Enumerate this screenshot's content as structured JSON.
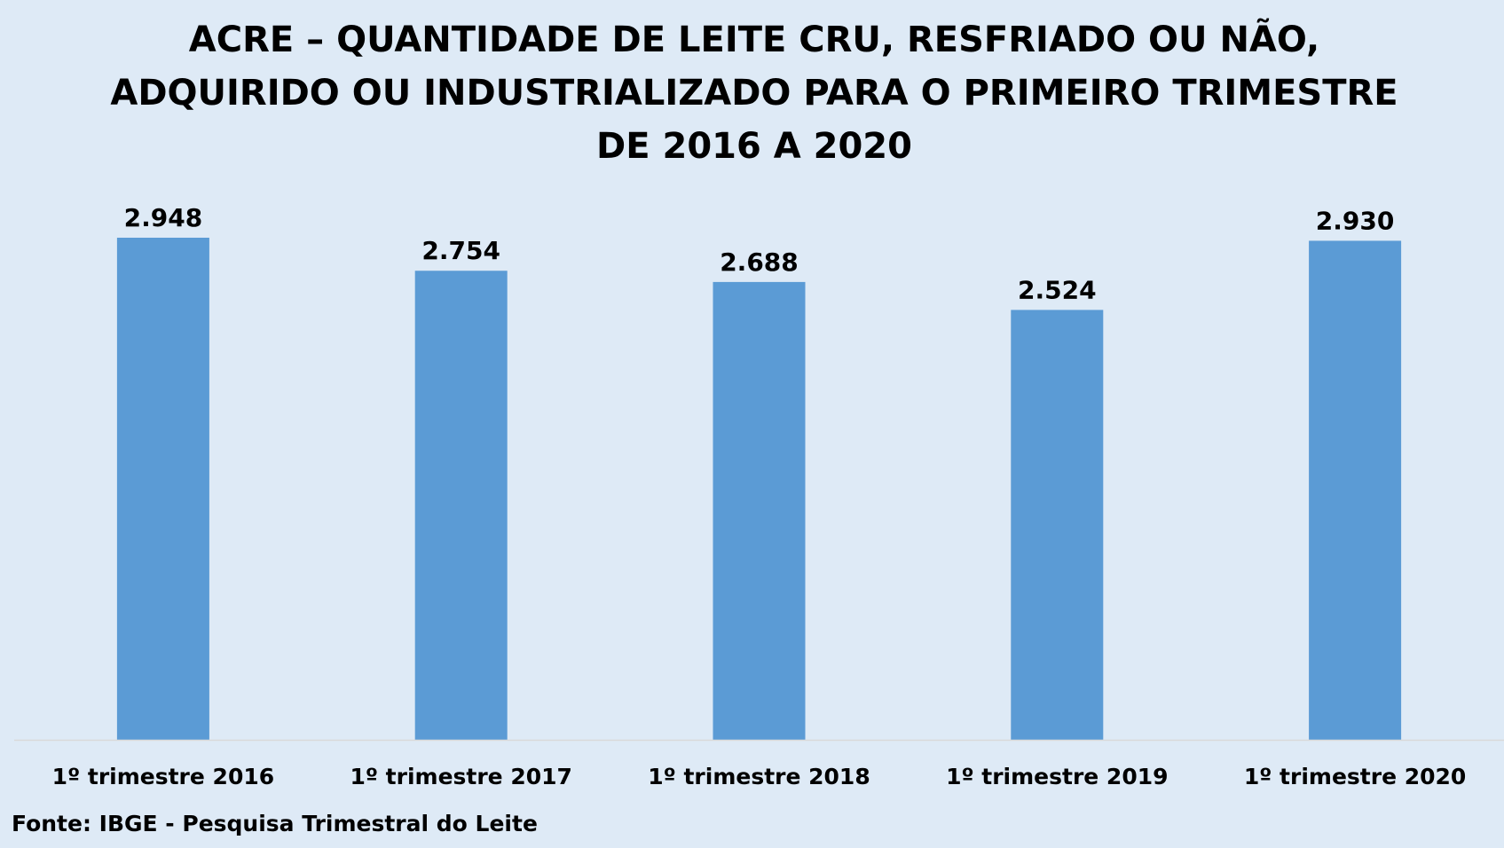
{
  "chart_data": {
    "type": "bar",
    "title_lines": [
      "ACRE – QUANTIDADE DE LEITE CRU, RESFRIADO OU NÃO,",
      "ADQUIRIDO OU INDUSTRIALIZADO PARA O PRIMEIRO TRIMESTRE",
      "DE 2016 A 2020"
    ],
    "categories": [
      "1º trimestre 2016",
      "1º trimestre 2017",
      "1º trimestre 2018",
      "1º trimestre 2019",
      "1º trimestre 2020"
    ],
    "values": [
      2948,
      2754,
      2688,
      2524,
      2930
    ],
    "value_labels": [
      "2.948",
      "2.754",
      "2.688",
      "2.524",
      "2.930"
    ],
    "xlabel": "",
    "ylabel": "",
    "ylim": [
      0,
      3000
    ],
    "grid": false,
    "legend": "none",
    "bar_color": "#5b9bd5",
    "background_color": "#deeaf6",
    "axis_color": "#d9d9d9"
  },
  "source": "Fonte: IBGE - Pesquisa Trimestral do Leite"
}
